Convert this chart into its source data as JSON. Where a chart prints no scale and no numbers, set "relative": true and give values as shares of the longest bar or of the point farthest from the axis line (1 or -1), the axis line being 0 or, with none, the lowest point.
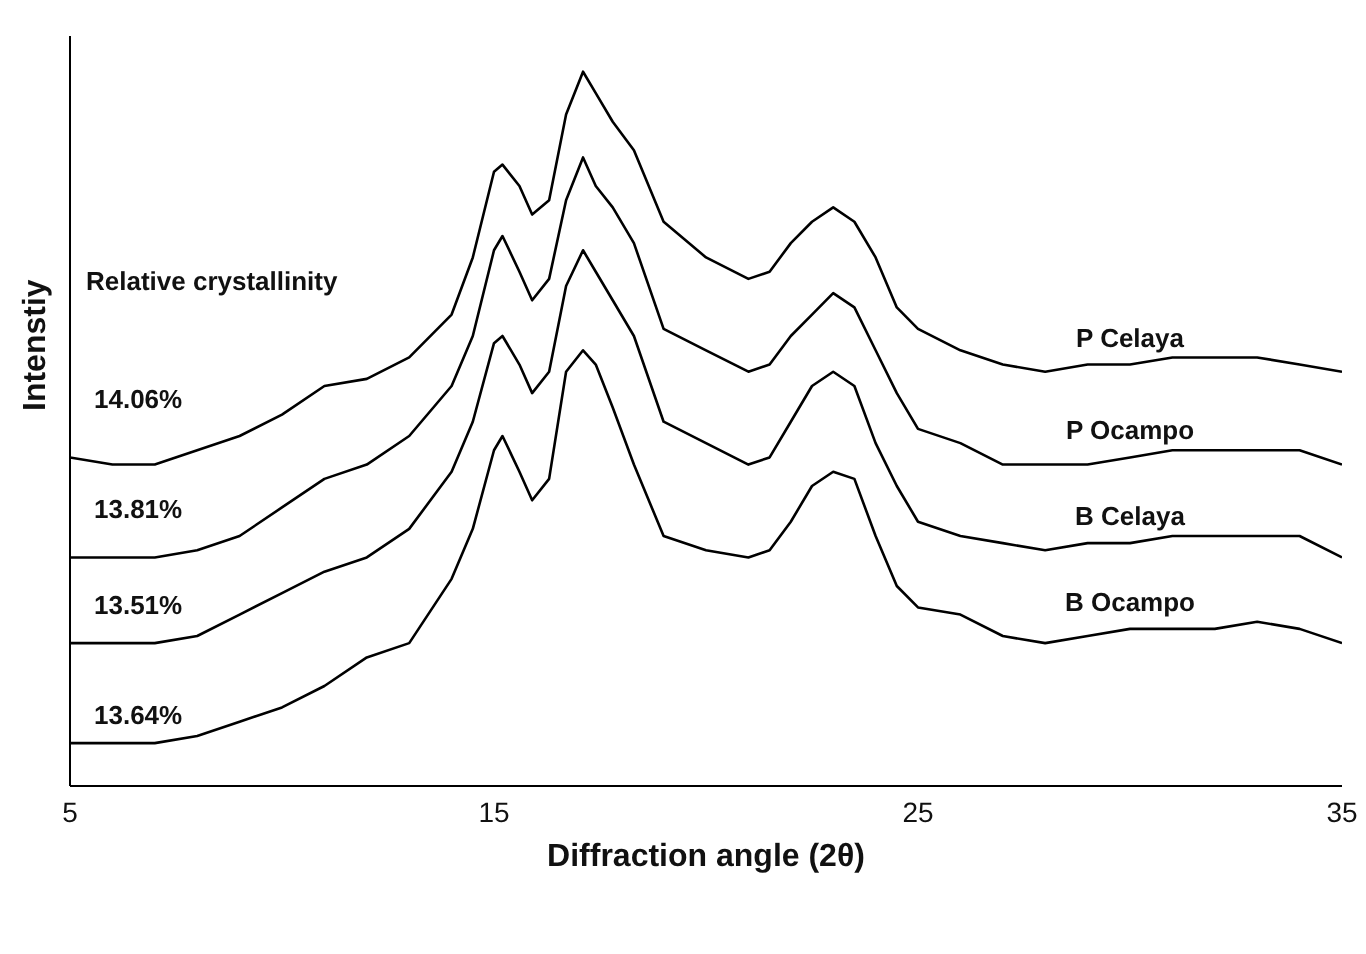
{
  "chart_data": {
    "type": "line",
    "relative": true,
    "xlabel": "Diffraction angle (2θ)",
    "ylabel": "Intenstiy",
    "xlim": [
      5,
      35
    ],
    "xticks": [
      5,
      15,
      25,
      35
    ],
    "marker": "none",
    "line_style": "solid",
    "x": [
      5,
      6,
      7,
      8,
      9,
      10,
      11,
      12,
      13,
      14,
      14.5,
      15,
      15.2,
      15.6,
      15.9,
      16.3,
      16.7,
      17.1,
      17.4,
      17.8,
      18.3,
      19,
      20,
      21,
      21.5,
      22,
      22.5,
      23,
      23.5,
      24,
      24.5,
      25,
      26,
      27,
      28,
      29,
      30,
      31,
      32,
      33,
      34,
      35
    ],
    "annotations": [
      "Relative crystallinity",
      "14.06%",
      "13.81%",
      "13.51%",
      "13.64%"
    ],
    "series": [
      {
        "name": "P Celaya",
        "color": "#000000",
        "values": [
          0.46,
          0.45,
          0.45,
          0.47,
          0.49,
          0.52,
          0.56,
          0.57,
          0.6,
          0.66,
          0.74,
          0.86,
          0.87,
          0.84,
          0.8,
          0.82,
          0.94,
          1,
          0.97,
          0.93,
          0.89,
          0.79,
          0.74,
          0.71,
          0.72,
          0.76,
          0.79,
          0.81,
          0.79,
          0.74,
          0.67,
          0.64,
          0.61,
          0.59,
          0.58,
          0.59,
          0.59,
          0.6,
          0.6,
          0.6,
          0.59,
          0.58
        ]
      },
      {
        "name": "P Ocampo",
        "color": "#000000",
        "values": [
          0.32,
          0.32,
          0.32,
          0.33,
          0.35,
          0.39,
          0.43,
          0.45,
          0.49,
          0.56,
          0.63,
          0.75,
          0.77,
          0.72,
          0.68,
          0.71,
          0.82,
          0.88,
          0.84,
          0.81,
          0.76,
          0.64,
          0.61,
          0.58,
          0.59,
          0.63,
          0.66,
          0.69,
          0.67,
          0.61,
          0.55,
          0.5,
          0.48,
          0.45,
          0.45,
          0.45,
          0.46,
          0.47,
          0.47,
          0.47,
          0.47,
          0.45
        ]
      },
      {
        "name": "B Celaya",
        "color": "#000000",
        "values": [
          0.2,
          0.2,
          0.2,
          0.21,
          0.24,
          0.27,
          0.3,
          0.32,
          0.36,
          0.44,
          0.51,
          0.62,
          0.63,
          0.59,
          0.55,
          0.58,
          0.7,
          0.75,
          0.72,
          0.68,
          0.63,
          0.51,
          0.48,
          0.45,
          0.46,
          0.51,
          0.56,
          0.58,
          0.56,
          0.48,
          0.42,
          0.37,
          0.35,
          0.34,
          0.33,
          0.34,
          0.34,
          0.35,
          0.35,
          0.35,
          0.35,
          0.32
        ]
      },
      {
        "name": "B Ocampo",
        "color": "#000000",
        "values": [
          0.06,
          0.06,
          0.06,
          0.07,
          0.09,
          0.11,
          0.14,
          0.18,
          0.2,
          0.29,
          0.36,
          0.47,
          0.49,
          0.44,
          0.4,
          0.43,
          0.58,
          0.61,
          0.59,
          0.53,
          0.45,
          0.35,
          0.33,
          0.32,
          0.33,
          0.37,
          0.42,
          0.44,
          0.43,
          0.35,
          0.28,
          0.25,
          0.24,
          0.21,
          0.2,
          0.21,
          0.22,
          0.22,
          0.22,
          0.23,
          0.22,
          0.2
        ]
      }
    ]
  }
}
